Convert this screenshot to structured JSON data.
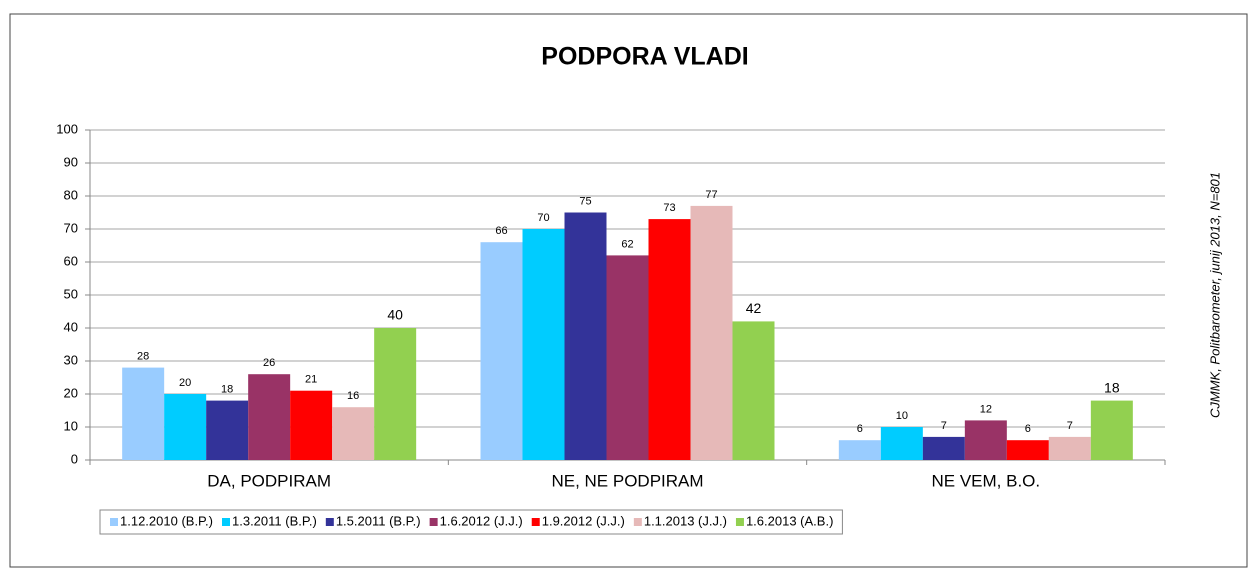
{
  "chart_data": {
    "type": "bar",
    "title": "PODPORA VLADI",
    "annotation": "CJMMK, Politbarometer, junij 2013, N=801",
    "categories": [
      "DA, PODPIRAM",
      "NE, NE PODPIRAM",
      "NE VEM, B.O."
    ],
    "series": [
      {
        "name": "1.12.2010 (B.P.)",
        "color": "#99ccff",
        "values": [
          28,
          66,
          6
        ]
      },
      {
        "name": "1.3.2011 (B.P.)",
        "color": "#00ccff",
        "values": [
          20,
          70,
          10
        ]
      },
      {
        "name": "1.5.2011 (B.P.)",
        "color": "#333399",
        "values": [
          18,
          75,
          7
        ]
      },
      {
        "name": "1.6.2012 (J.J.)",
        "color": "#993366",
        "values": [
          26,
          62,
          12
        ]
      },
      {
        "name": "1.9.2012 (J.J.)",
        "color": "#ff0000",
        "values": [
          21,
          73,
          6
        ]
      },
      {
        "name": "1.1.2013 (J.J.)",
        "color": "#e6b9b8",
        "values": [
          16,
          77,
          7
        ]
      },
      {
        "name": "1.6.2013 (A.B.)",
        "color": "#92d050",
        "values": [
          40,
          42,
          18
        ]
      }
    ],
    "ylim": [
      0,
      100
    ],
    "yticks": [
      0,
      10,
      20,
      30,
      40,
      50,
      60,
      70,
      80,
      90,
      100
    ],
    "grid": true,
    "legend": "bottom"
  }
}
